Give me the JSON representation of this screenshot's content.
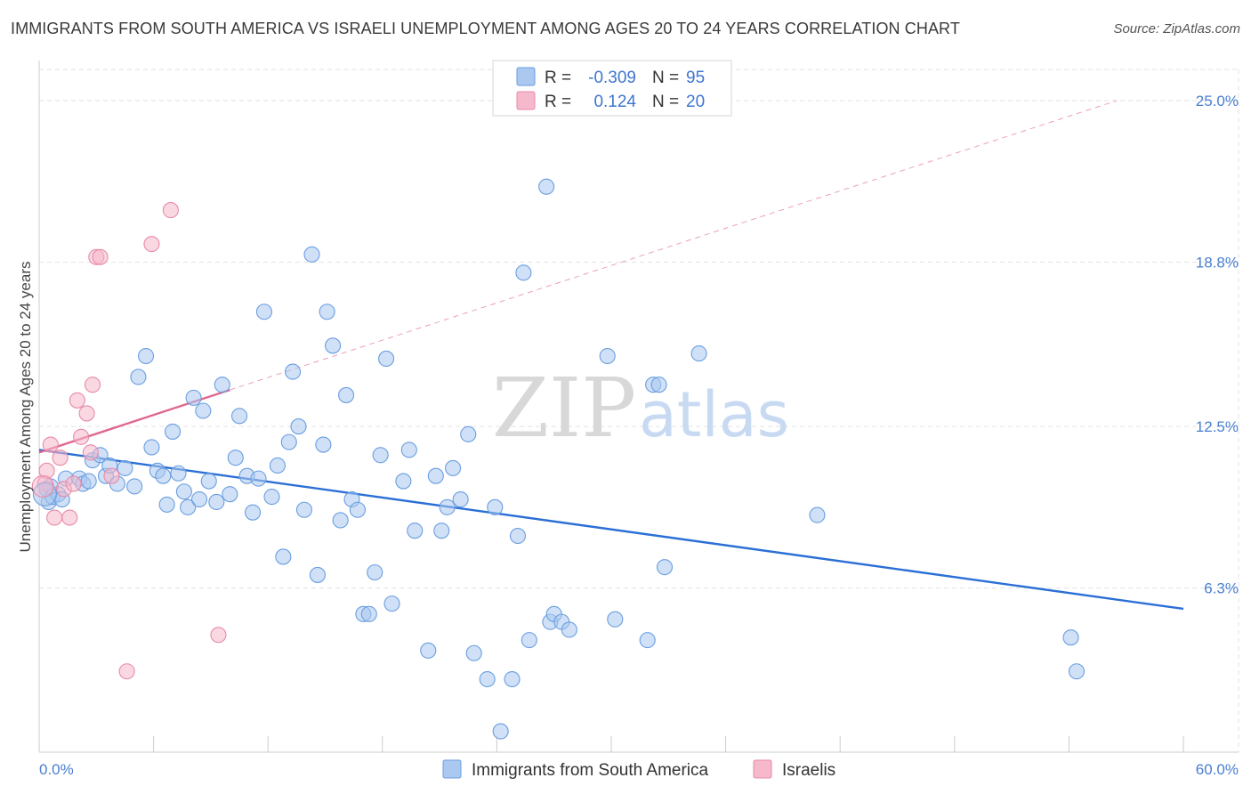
{
  "header": {
    "title": "IMMIGRANTS FROM SOUTH AMERICA VS ISRAELI UNEMPLOYMENT AMONG AGES 20 TO 24 YEARS CORRELATION CHART",
    "source": "Source: ZipAtlas.com"
  },
  "watermark": {
    "zip": "ZIP",
    "atlas": "atlas"
  },
  "legend_top": {
    "rows": [
      {
        "r_label": "R =",
        "r_value": "-0.309",
        "n_label": "N =",
        "n_value": "95",
        "color": "#aac8f0"
      },
      {
        "r_label": "R =",
        "r_value": "0.124",
        "n_label": "N =",
        "n_value": "20",
        "color": "#f6b8cb"
      }
    ]
  },
  "legend_bottom": {
    "items": [
      {
        "label": "Immigrants from South America",
        "color": "#aac8f0"
      },
      {
        "label": "Israelis",
        "color": "#f6b8cb"
      }
    ]
  },
  "chart_data": {
    "type": "scatter",
    "title": "IMMIGRANTS FROM SOUTH AMERICA VS ISRAELI UNEMPLOYMENT AMONG AGES 20 TO 24 YEARS CORRELATION CHART",
    "xlabel": "",
    "ylabel": "Unemployment Among Ages 20 to 24 years",
    "xlim": [
      0,
      60
    ],
    "ylim": [
      0,
      26.2
    ],
    "x_tick_labels": [
      "0.0%",
      "60.0%"
    ],
    "y_ticks": [
      6.3,
      12.5,
      18.8,
      25.0
    ],
    "y_tick_labels": [
      "6.3%",
      "12.5%",
      "18.8%",
      "25.0%"
    ],
    "grid": true,
    "legend_position": "top-center",
    "series": [
      {
        "name": "Immigrants from South America",
        "color": "#aac8f0",
        "stroke": "#6a9ee0",
        "R": -0.309,
        "N": 95,
        "trend": {
          "x": [
            0,
            60
          ],
          "y": [
            11.6,
            5.5
          ],
          "style": "solid",
          "color": "#2b6fd6"
        },
        "points": [
          [
            0.4,
            10.1
          ],
          [
            0.5,
            9.6
          ],
          [
            0.7,
            9.8
          ],
          [
            1.0,
            9.9
          ],
          [
            1.2,
            9.7
          ],
          [
            1.4,
            10.5
          ],
          [
            2.1,
            10.5
          ],
          [
            2.3,
            10.3
          ],
          [
            2.6,
            10.4
          ],
          [
            2.8,
            11.2
          ],
          [
            3.2,
            11.4
          ],
          [
            3.5,
            10.6
          ],
          [
            3.7,
            11.0
          ],
          [
            4.1,
            10.3
          ],
          [
            4.5,
            10.9
          ],
          [
            5.0,
            10.2
          ],
          [
            5.2,
            14.4
          ],
          [
            5.6,
            15.2
          ],
          [
            5.9,
            11.7
          ],
          [
            6.2,
            10.8
          ],
          [
            6.5,
            10.6
          ],
          [
            6.7,
            9.5
          ],
          [
            7.0,
            12.3
          ],
          [
            7.3,
            10.7
          ],
          [
            7.6,
            10.0
          ],
          [
            7.8,
            9.4
          ],
          [
            8.1,
            13.6
          ],
          [
            8.4,
            9.7
          ],
          [
            8.6,
            13.1
          ],
          [
            8.9,
            10.4
          ],
          [
            9.3,
            9.6
          ],
          [
            9.6,
            14.1
          ],
          [
            10.0,
            9.9
          ],
          [
            10.3,
            11.3
          ],
          [
            10.5,
            12.9
          ],
          [
            10.9,
            10.6
          ],
          [
            11.2,
            9.2
          ],
          [
            11.5,
            10.5
          ],
          [
            11.8,
            16.9
          ],
          [
            12.2,
            9.8
          ],
          [
            12.5,
            11.0
          ],
          [
            12.8,
            7.5
          ],
          [
            13.1,
            11.9
          ],
          [
            13.3,
            14.6
          ],
          [
            13.6,
            12.5
          ],
          [
            13.9,
            9.3
          ],
          [
            14.3,
            19.1
          ],
          [
            14.6,
            6.8
          ],
          [
            14.9,
            11.8
          ],
          [
            15.1,
            16.9
          ],
          [
            15.4,
            15.6
          ],
          [
            15.8,
            8.9
          ],
          [
            16.1,
            13.7
          ],
          [
            16.4,
            9.7
          ],
          [
            16.7,
            9.3
          ],
          [
            17.0,
            5.3
          ],
          [
            17.3,
            5.3
          ],
          [
            17.6,
            6.9
          ],
          [
            17.9,
            11.4
          ],
          [
            18.2,
            15.1
          ],
          [
            18.5,
            5.7
          ],
          [
            19.1,
            10.4
          ],
          [
            19.4,
            11.6
          ],
          [
            19.7,
            8.5
          ],
          [
            20.4,
            3.9
          ],
          [
            20.8,
            10.6
          ],
          [
            21.1,
            8.5
          ],
          [
            21.4,
            9.4
          ],
          [
            21.7,
            10.9
          ],
          [
            22.1,
            9.7
          ],
          [
            22.5,
            12.2
          ],
          [
            22.8,
            3.8
          ],
          [
            23.5,
            2.8
          ],
          [
            23.9,
            9.4
          ],
          [
            24.2,
            0.8
          ],
          [
            24.8,
            2.8
          ],
          [
            25.1,
            8.3
          ],
          [
            25.4,
            18.4
          ],
          [
            25.7,
            4.3
          ],
          [
            26.8,
            5.0
          ],
          [
            26.6,
            21.7
          ],
          [
            27.0,
            5.3
          ],
          [
            27.4,
            5.0
          ],
          [
            27.8,
            4.7
          ],
          [
            29.8,
            15.2
          ],
          [
            30.2,
            5.1
          ],
          [
            31.9,
            4.3
          ],
          [
            32.2,
            14.1
          ],
          [
            32.5,
            14.1
          ],
          [
            32.8,
            7.1
          ],
          [
            34.6,
            15.3
          ],
          [
            40.8,
            9.1
          ],
          [
            54.1,
            4.4
          ],
          [
            54.4,
            3.1
          ],
          [
            0.6,
            10.2
          ]
        ]
      },
      {
        "name": "Israelis",
        "color": "#f6b8cb",
        "stroke": "#e88aa8",
        "R": 0.124,
        "N": 20,
        "trend": {
          "x": [
            0,
            10
          ],
          "y": [
            11.5,
            13.9
          ],
          "style": "solid",
          "color": "#e06890",
          "extended_to": [
            56.5,
            25.0
          ],
          "extended_style": "dashed"
        },
        "points": [
          [
            0.3,
            10.3
          ],
          [
            0.4,
            10.8
          ],
          [
            0.6,
            11.8
          ],
          [
            0.8,
            9.0
          ],
          [
            1.1,
            11.3
          ],
          [
            1.3,
            10.1
          ],
          [
            1.6,
            9.0
          ],
          [
            1.8,
            10.3
          ],
          [
            2.0,
            13.5
          ],
          [
            2.2,
            12.1
          ],
          [
            2.5,
            13.0
          ],
          [
            2.7,
            11.5
          ],
          [
            2.8,
            14.1
          ],
          [
            3.0,
            19.0
          ],
          [
            3.2,
            19.0
          ],
          [
            3.8,
            10.6
          ],
          [
            4.6,
            3.1
          ],
          [
            5.9,
            19.5
          ],
          [
            6.9,
            20.8
          ],
          [
            9.4,
            4.5
          ]
        ]
      }
    ]
  }
}
